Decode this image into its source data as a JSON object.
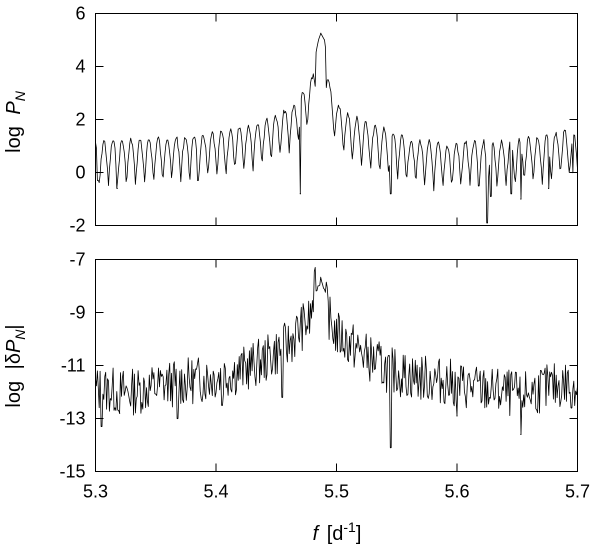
{
  "chart_data": [
    {
      "type": "line",
      "panel": "top",
      "ylabel": {
        "prefix": "log",
        "symbol": "P",
        "subscript": "N"
      },
      "xlim": [
        5.3,
        5.7
      ],
      "ylim": [
        -2,
        6
      ],
      "xticks": [
        5.3,
        5.4,
        5.5,
        5.6,
        5.7
      ],
      "yticks": [
        -2,
        0,
        2,
        4,
        6
      ],
      "ytick_labels": [
        "-2",
        "0",
        "2",
        "4",
        "6"
      ],
      "show_x_tick_labels": false,
      "grid": false,
      "series": [
        {
          "color": "#000000",
          "peak": {
            "x": 5.487,
            "y": 5.25
          },
          "envelope": [
            [
              5.3,
              1.3
            ],
            [
              5.33,
              1.35
            ],
            [
              5.36,
              1.45
            ],
            [
              5.39,
              1.55
            ],
            [
              5.41,
              1.7
            ],
            [
              5.43,
              1.95
            ],
            [
              5.45,
              2.3
            ],
            [
              5.465,
              2.7
            ],
            [
              5.475,
              3.3
            ],
            [
              5.48,
              3.8
            ],
            [
              5.485,
              5.0
            ],
            [
              5.487,
              5.25
            ],
            [
              5.49,
              5.0
            ],
            [
              5.495,
              3.3
            ],
            [
              5.5,
              2.8
            ],
            [
              5.51,
              2.3
            ],
            [
              5.53,
              1.9
            ],
            [
              5.56,
              1.4
            ],
            [
              5.59,
              1.15
            ],
            [
              5.61,
              1.3
            ],
            [
              5.64,
              1.25
            ],
            [
              5.67,
              1.45
            ],
            [
              5.69,
              1.7
            ],
            [
              5.7,
              1.5
            ]
          ],
          "dips": [
            {
              "x": 5.302,
              "y": -0.3
            },
            {
              "x": 5.318,
              "y": -0.6
            },
            {
              "x": 5.385,
              "y": -0.3
            },
            {
              "x": 5.47,
              "y": -0.8
            },
            {
              "x": 5.545,
              "y": -0.8
            },
            {
              "x": 5.618,
              "y": -0.5
            },
            {
              "x": 5.625,
              "y": -1.9
            },
            {
              "x": 5.628,
              "y": -0.9
            },
            {
              "x": 5.645,
              "y": -0.8
            },
            {
              "x": 5.653,
              "y": -1.0
            },
            {
              "x": 5.676,
              "y": -0.6
            },
            {
              "x": 5.696,
              "y": 0.0
            }
          ]
        }
      ]
    },
    {
      "type": "line",
      "panel": "bottom",
      "ylabel": {
        "prefix": "log",
        "open": "|δ",
        "symbol": "P",
        "subscript": "N",
        "close": "|"
      },
      "xlabel": {
        "symbol": "f",
        "unit": "[d",
        "unit_exp": "-1",
        "unit_close": "]"
      },
      "xlim": [
        5.3,
        5.7
      ],
      "ylim": [
        -15,
        -7
      ],
      "xticks": [
        5.3,
        5.4,
        5.5,
        5.6,
        5.7
      ],
      "xtick_labels": [
        "5.3",
        "5.4",
        "5.5",
        "5.6",
        "5.7"
      ],
      "yticks": [
        -15,
        -13,
        -11,
        -9,
        -7
      ],
      "ytick_labels": [
        "-15",
        "-13",
        "-11",
        "-9",
        "-7"
      ],
      "grid": false,
      "series": [
        {
          "color": "#000000",
          "peak": {
            "x": 5.487,
            "y": -7.75
          },
          "envelope": [
            [
              5.3,
              -11.9
            ],
            [
              5.33,
              -12.0
            ],
            [
              5.36,
              -11.7
            ],
            [
              5.39,
              -11.5
            ],
            [
              5.42,
              -11.2
            ],
            [
              5.44,
              -10.8
            ],
            [
              5.46,
              -10.2
            ],
            [
              5.47,
              -9.6
            ],
            [
              5.478,
              -9.3
            ],
            [
              5.482,
              -8.2
            ],
            [
              5.487,
              -7.75
            ],
            [
              5.49,
              -8.2
            ],
            [
              5.495,
              -9.4
            ],
            [
              5.5,
              -9.8
            ],
            [
              5.52,
              -10.5
            ],
            [
              5.54,
              -11.1
            ],
            [
              5.56,
              -11.4
            ],
            [
              5.59,
              -11.6
            ],
            [
              5.62,
              -11.9
            ],
            [
              5.65,
              -12.1
            ],
            [
              5.68,
              -11.8
            ],
            [
              5.7,
              -11.6
            ]
          ],
          "dips": [
            {
              "x": 5.305,
              "y": -13.3
            },
            {
              "x": 5.32,
              "y": -12.8
            },
            {
              "x": 5.368,
              "y": -13.0
            },
            {
              "x": 5.405,
              "y": -12.5
            },
            {
              "x": 5.455,
              "y": -12.2
            },
            {
              "x": 5.545,
              "y": -14.1
            },
            {
              "x": 5.6,
              "y": -12.9
            },
            {
              "x": 5.653,
              "y": -13.6
            },
            {
              "x": 5.695,
              "y": -12.6
            }
          ]
        }
      ]
    }
  ]
}
